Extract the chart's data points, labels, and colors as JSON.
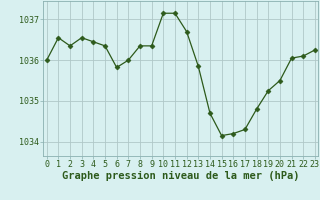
{
  "hours": [
    0,
    1,
    2,
    3,
    4,
    5,
    6,
    7,
    8,
    9,
    10,
    11,
    12,
    13,
    14,
    15,
    16,
    17,
    18,
    19,
    20,
    21,
    22,
    23
  ],
  "pressure": [
    1036.0,
    1036.55,
    1036.35,
    1036.55,
    1036.45,
    1036.35,
    1035.82,
    1036.0,
    1036.35,
    1036.35,
    1037.15,
    1037.15,
    1036.7,
    1035.85,
    1034.7,
    1034.15,
    1034.2,
    1034.3,
    1034.8,
    1035.25,
    1035.5,
    1036.05,
    1036.1,
    1036.25
  ],
  "line_color": "#2d5a1b",
  "marker": "D",
  "marker_size": 2.5,
  "background_color": "#d8f0f0",
  "grid_color": "#b0c8c8",
  "xlabel": "Graphe pression niveau de la mer (hPa)",
  "xlabel_fontsize": 7.5,
  "xlabel_color": "#2d5a1b",
  "ytick_labels": [
    "1034",
    "1035",
    "1036",
    "1037"
  ],
  "ytick_values": [
    1034,
    1035,
    1036,
    1037
  ],
  "ylim": [
    1033.65,
    1037.45
  ],
  "xlim": [
    -0.3,
    23.3
  ],
  "xtick_values": [
    0,
    1,
    2,
    3,
    4,
    5,
    6,
    7,
    8,
    9,
    10,
    11,
    12,
    13,
    14,
    15,
    16,
    17,
    18,
    19,
    20,
    21,
    22,
    23
  ],
  "tick_fontsize": 6.0,
  "tick_color": "#2d5a1b",
  "spine_color": "#8ab0b0"
}
